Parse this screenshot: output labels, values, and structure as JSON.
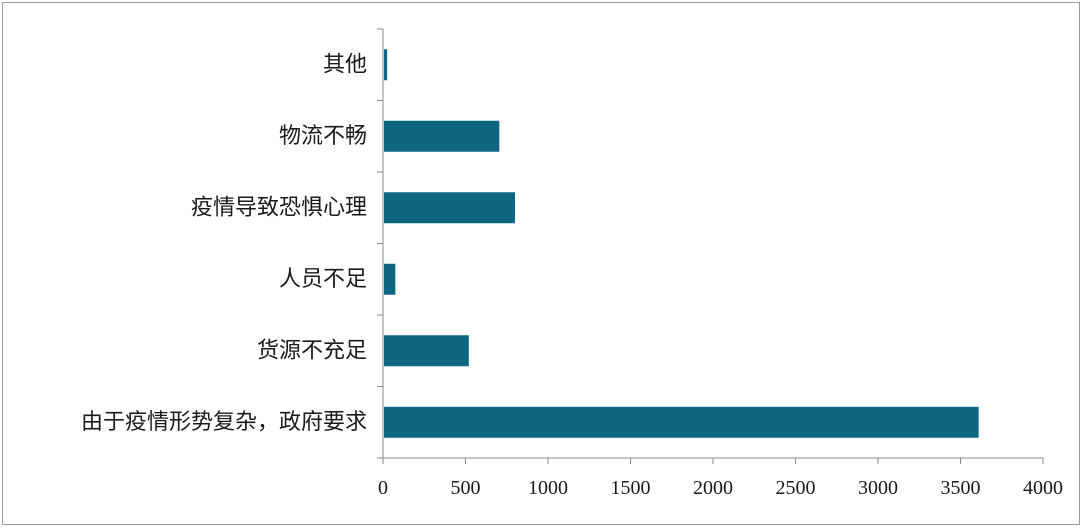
{
  "chart_data": {
    "type": "bar",
    "orientation": "horizontal",
    "categories": [
      "其他",
      "物流不畅",
      "疫情导致恐惧心理",
      "人员不足",
      "货源不充足",
      "由于疫情形势复杂，政府要求"
    ],
    "values": [
      25,
      705,
      800,
      75,
      520,
      3610
    ],
    "xlim": [
      0,
      4000
    ],
    "xticks": [
      "0",
      "500",
      "1000",
      "1500",
      "2000",
      "2500",
      "3000",
      "3500",
      "4000"
    ],
    "xtick_values": [
      0,
      500,
      1000,
      1500,
      2000,
      2500,
      3000,
      3500,
      4000
    ],
    "bar_color": "#0e6680",
    "grid": false,
    "legend": "none"
  }
}
